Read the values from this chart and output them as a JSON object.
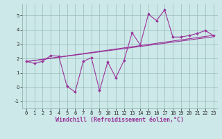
{
  "title": "",
  "xlabel": "Windchill (Refroidissement éolien,°C)",
  "bg_color": "#cce8e8",
  "line_color": "#993399",
  "grid_color": "#99bbbb",
  "x_data": [
    0,
    1,
    2,
    3,
    4,
    5,
    6,
    7,
    8,
    9,
    10,
    11,
    12,
    13,
    14,
    15,
    16,
    17,
    18,
    19,
    20,
    21,
    22,
    23
  ],
  "y_data": [
    1.8,
    1.65,
    1.8,
    2.2,
    2.15,
    0.05,
    -0.35,
    1.8,
    2.05,
    -0.25,
    1.75,
    0.65,
    1.85,
    3.8,
    2.95,
    5.1,
    4.65,
    5.4,
    3.5,
    3.5,
    3.6,
    3.75,
    3.95,
    3.6
  ],
  "trend1_x": [
    0,
    23
  ],
  "trend1_y": [
    1.78,
    3.62
  ],
  "trend2_x": [
    0,
    23
  ],
  "trend2_y": [
    1.78,
    3.52
  ],
  "ylim": [
    -1.5,
    5.8
  ],
  "xlim": [
    -0.5,
    23.5
  ],
  "yticks": [
    -1,
    0,
    1,
    2,
    3,
    4,
    5
  ],
  "xticks": [
    0,
    1,
    2,
    3,
    4,
    5,
    6,
    7,
    8,
    9,
    10,
    11,
    12,
    13,
    14,
    15,
    16,
    17,
    18,
    19,
    20,
    21,
    22,
    23
  ],
  "tick_fontsize": 5.0,
  "xlabel_fontsize": 6.0,
  "marker_size": 2.0,
  "line_width": 0.8
}
